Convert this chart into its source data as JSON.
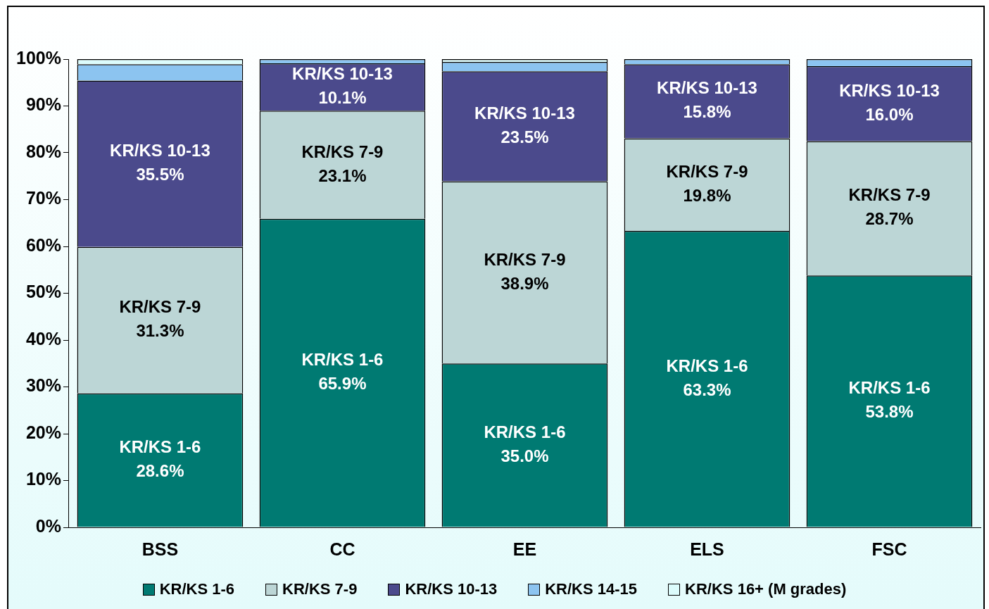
{
  "chart_data": {
    "type": "bar",
    "stacked": true,
    "categories": [
      "BSS",
      "CC",
      "EE",
      "ELS",
      "FSC"
    ],
    "ylim": [
      0,
      100
    ],
    "yticks": [
      {
        "value": 0,
        "label": "0%"
      },
      {
        "value": 10,
        "label": "10%"
      },
      {
        "value": 20,
        "label": "20%"
      },
      {
        "value": 30,
        "label": "30%"
      },
      {
        "value": 40,
        "label": "40%"
      },
      {
        "value": 50,
        "label": "50%"
      },
      {
        "value": 60,
        "label": "60%"
      },
      {
        "value": 70,
        "label": "70%"
      },
      {
        "value": 80,
        "label": "80%"
      },
      {
        "value": 90,
        "label": "90%"
      },
      {
        "value": 100,
        "label": "100%"
      }
    ],
    "grid": false,
    "legend": "bottom",
    "series": [
      {
        "name": "KR/KS 1-6",
        "color": "#007a72",
        "values": [
          28.6,
          65.9,
          35.0,
          63.3,
          53.8
        ],
        "value_labels": [
          "28.6%",
          "65.9%",
          "35.0%",
          "63.3%",
          "53.8%"
        ]
      },
      {
        "name": "KR/KS 7-9",
        "color": "#bcd6d6",
        "values": [
          31.3,
          23.1,
          38.9,
          19.8,
          28.7
        ],
        "value_labels": [
          "31.3%",
          "23.1%",
          "38.9%",
          "19.8%",
          "28.7%"
        ]
      },
      {
        "name": "KR/KS 10-13",
        "color": "#4b4a8c",
        "values": [
          35.5,
          10.1,
          23.5,
          15.8,
          16.0
        ],
        "value_labels": [
          "35.5%",
          "10.1%",
          "23.5%",
          "15.8%",
          "16.0%"
        ]
      },
      {
        "name": "KR/KS 14-15",
        "color": "#8cc4f0",
        "values": [
          3.5,
          0.9,
          2.0,
          1.1,
          1.5
        ],
        "value_labels": [
          null,
          null,
          null,
          null,
          null
        ]
      },
      {
        "name": "KR/KS 16+ (M grades)",
        "color": "#dcfcfc",
        "values": [
          1.1,
          0,
          0.6,
          0,
          0
        ],
        "value_labels": [
          null,
          null,
          null,
          null,
          null
        ]
      }
    ]
  }
}
